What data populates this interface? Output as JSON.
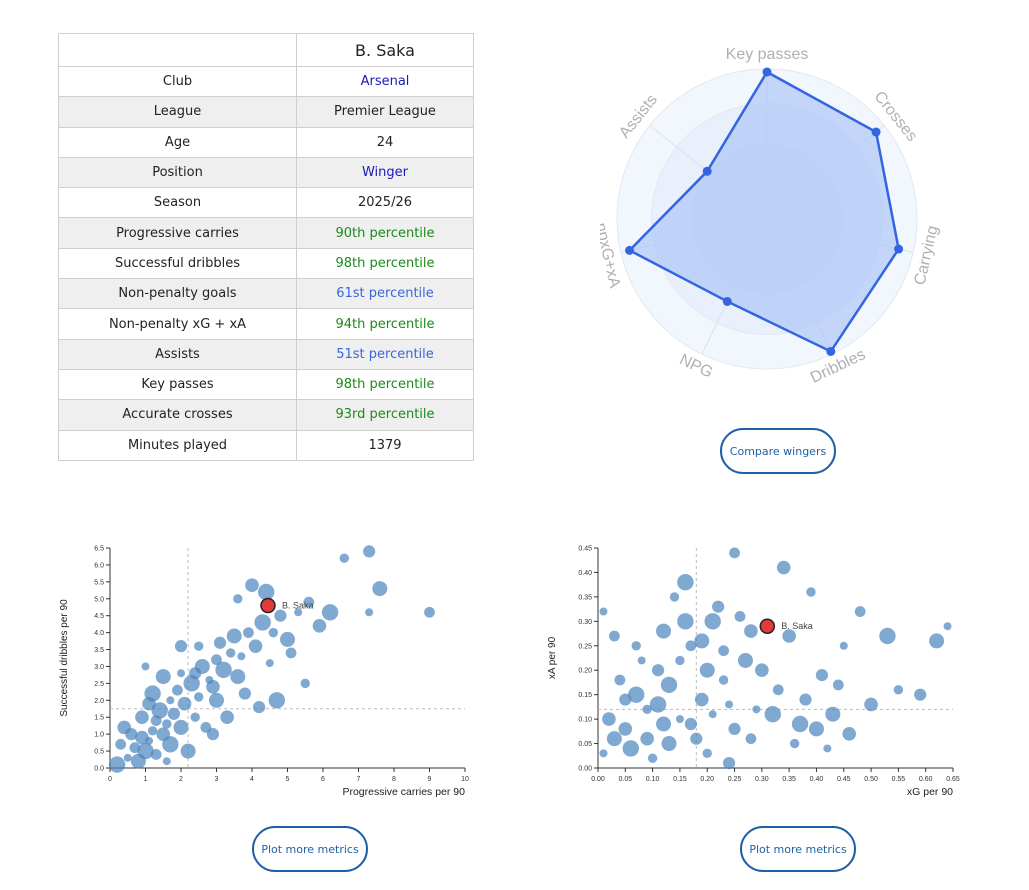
{
  "player_table": {
    "header": "B. Saka",
    "rows": [
      {
        "label": "Club",
        "value": "Arsenal",
        "style": "navy"
      },
      {
        "label": "League",
        "value": "Premier League",
        "style": "plain"
      },
      {
        "label": "Age",
        "value": "24",
        "style": "plain"
      },
      {
        "label": "Position",
        "value": "Winger",
        "style": "navy"
      },
      {
        "label": "Season",
        "value": "2025/26",
        "style": "plain"
      },
      {
        "label": "Progressive carries",
        "value": "90th percentile",
        "style": "green"
      },
      {
        "label": "Successful dribbles",
        "value": "98th percentile",
        "style": "green"
      },
      {
        "label": "Non-penalty goals",
        "value": "61st percentile",
        "style": "blue"
      },
      {
        "label": "Non-penalty xG + xA",
        "value": "94th percentile",
        "style": "green"
      },
      {
        "label": "Assists",
        "value": "51st percentile",
        "style": "blue"
      },
      {
        "label": "Key passes",
        "value": "98th percentile",
        "style": "green"
      },
      {
        "label": "Accurate crosses",
        "value": "93rd percentile",
        "style": "green"
      },
      {
        "label": "Minutes played",
        "value": "1379",
        "style": "plain"
      }
    ]
  },
  "colors": {
    "green": "#1a8a1a",
    "blue": "#3b66d6",
    "navy": "#1a1ab8",
    "button": "#1f5fa8",
    "dot": "#4a84bd",
    "highlight": "#e03b3b",
    "radar_line": "#3365e0",
    "radar_fill": "#a9c3f7"
  },
  "buttons": {
    "compare": "Compare wingers",
    "plot_more": "Plot more metrics"
  },
  "chart_data": [
    {
      "type": "radar",
      "title": "",
      "axes": [
        "Key passes",
        "Crosses",
        "Carrying",
        "Dribbles",
        "NPG",
        "npxG+xA",
        "Assists"
      ],
      "values": [
        98,
        93,
        90,
        98,
        61,
        94,
        51
      ],
      "range": [
        0,
        100
      ]
    },
    {
      "type": "scatter",
      "xlabel": "Progressive carries per 90",
      "ylabel": "Successful dribbles per 90",
      "xlim": [
        0,
        10
      ],
      "ylim": [
        0,
        6.5
      ],
      "xticks": [
        0,
        1,
        2,
        3,
        4,
        5,
        6,
        7,
        8,
        9,
        10
      ],
      "yticks": [
        0,
        0.5,
        1,
        1.5,
        2,
        2.5,
        3,
        3.5,
        4,
        4.5,
        5,
        5.5,
        6,
        6.5
      ],
      "ytick_labels": [
        "0.0",
        "0.5",
        "1.0",
        "1.5",
        "2.0",
        "2.5",
        "3.0",
        "3.5",
        "4.0",
        "4.5",
        "5.0",
        "5.5",
        "6.0",
        "6.5"
      ],
      "ref_lines": {
        "x": 2.2,
        "y": 1.75
      },
      "highlight": {
        "label": "B. Saka",
        "x": 4.45,
        "y": 4.8
      },
      "points": [
        [
          0.5,
          0.3
        ],
        [
          0.7,
          0.6
        ],
        [
          0.9,
          0.9
        ],
        [
          1.0,
          0.5
        ],
        [
          1.2,
          1.1
        ],
        [
          0.6,
          1.0
        ],
        [
          0.8,
          0.2
        ],
        [
          1.1,
          0.8
        ],
        [
          1.3,
          1.4
        ],
        [
          1.5,
          1.0
        ],
        [
          1.4,
          1.7
        ],
        [
          1.6,
          1.3
        ],
        [
          1.8,
          1.6
        ],
        [
          2.0,
          1.2
        ],
        [
          1.7,
          2.0
        ],
        [
          1.9,
          2.3
        ],
        [
          2.1,
          1.9
        ],
        [
          2.3,
          2.5
        ],
        [
          2.5,
          2.1
        ],
        [
          2.4,
          2.8
        ],
        [
          2.6,
          3.0
        ],
        [
          2.8,
          2.6
        ],
        [
          3.0,
          3.2
        ],
        [
          2.9,
          2.4
        ],
        [
          3.2,
          2.9
        ],
        [
          3.4,
          3.4
        ],
        [
          3.1,
          3.7
        ],
        [
          3.5,
          3.9
        ],
        [
          3.7,
          3.3
        ],
        [
          3.9,
          4.0
        ],
        [
          4.1,
          3.6
        ],
        [
          4.3,
          4.3
        ],
        [
          4.6,
          4.0
        ],
        [
          4.8,
          4.5
        ],
        [
          5.0,
          3.8
        ],
        [
          5.3,
          4.6
        ],
        [
          5.6,
          4.9
        ],
        [
          5.9,
          4.2
        ],
        [
          6.2,
          4.6
        ],
        [
          6.6,
          6.2
        ],
        [
          7.3,
          6.4
        ],
        [
          7.6,
          5.3
        ],
        [
          7.3,
          4.6
        ],
        [
          9.0,
          4.6
        ],
        [
          4.0,
          5.4
        ],
        [
          4.4,
          5.2
        ],
        [
          3.6,
          5.0
        ],
        [
          2.0,
          3.6
        ],
        [
          1.5,
          2.7
        ],
        [
          1.0,
          3.0
        ],
        [
          2.7,
          1.2
        ],
        [
          3.3,
          1.5
        ],
        [
          4.7,
          2.0
        ],
        [
          5.5,
          2.5
        ],
        [
          4.2,
          1.8
        ],
        [
          2.2,
          0.5
        ],
        [
          1.6,
          0.2
        ],
        [
          0.3,
          0.7
        ],
        [
          0.4,
          1.2
        ],
        [
          1.2,
          2.2
        ],
        [
          2.5,
          3.6
        ],
        [
          3.8,
          2.2
        ],
        [
          3.0,
          2.0
        ],
        [
          2.0,
          2.8
        ],
        [
          1.3,
          0.4
        ],
        [
          0.9,
          1.5
        ],
        [
          1.7,
          0.7
        ],
        [
          2.4,
          1.5
        ],
        [
          2.9,
          1.0
        ],
        [
          3.6,
          2.7
        ],
        [
          4.5,
          3.1
        ],
        [
          5.1,
          3.4
        ],
        [
          1.1,
          1.9
        ],
        [
          0.2,
          0.1
        ]
      ]
    },
    {
      "type": "scatter",
      "xlabel": "xG per 90",
      "ylabel": "xA per 90",
      "xlim": [
        0,
        0.65
      ],
      "ylim": [
        0,
        0.45
      ],
      "xticks": [
        0,
        0.05,
        0.1,
        0.15,
        0.2,
        0.25,
        0.3,
        0.35,
        0.4,
        0.45,
        0.5,
        0.55,
        0.6,
        0.65
      ],
      "xtick_labels": [
        "0.00",
        "0.05",
        "0.10",
        "0.15",
        "0.20",
        "0.25",
        "0.30",
        "0.35",
        "0.40",
        "0.45",
        "0.50",
        "0.55",
        "0.60",
        "0.65"
      ],
      "yticks": [
        0,
        0.05,
        0.1,
        0.15,
        0.2,
        0.25,
        0.3,
        0.35,
        0.4,
        0.45
      ],
      "ytick_labels": [
        "0.00",
        "0.05",
        "0.10",
        "0.15",
        "0.20",
        "0.25",
        "0.30",
        "0.35",
        "0.40",
        "0.45"
      ],
      "ref_lines": {
        "x": 0.18,
        "y": 0.12
      },
      "highlight": {
        "label": "B. Saka",
        "x": 0.31,
        "y": 0.29
      },
      "points": [
        [
          0.01,
          0.32
        ],
        [
          0.03,
          0.27
        ],
        [
          0.05,
          0.08
        ],
        [
          0.07,
          0.15
        ],
        [
          0.09,
          0.12
        ],
        [
          0.11,
          0.2
        ],
        [
          0.13,
          0.05
        ],
        [
          0.15,
          0.1
        ],
        [
          0.17,
          0.25
        ],
        [
          0.19,
          0.14
        ],
        [
          0.21,
          0.3
        ],
        [
          0.23,
          0.18
        ],
        [
          0.25,
          0.08
        ],
        [
          0.27,
          0.22
        ],
        [
          0.29,
          0.12
        ],
        [
          0.33,
          0.16
        ],
        [
          0.35,
          0.27
        ],
        [
          0.37,
          0.09
        ],
        [
          0.39,
          0.36
        ],
        [
          0.41,
          0.19
        ],
        [
          0.43,
          0.11
        ],
        [
          0.45,
          0.25
        ],
        [
          0.48,
          0.32
        ],
        [
          0.5,
          0.13
        ],
        [
          0.53,
          0.27
        ],
        [
          0.55,
          0.16
        ],
        [
          0.59,
          0.15
        ],
        [
          0.62,
          0.26
        ],
        [
          0.64,
          0.29
        ],
        [
          0.25,
          0.44
        ],
        [
          0.34,
          0.41
        ],
        [
          0.16,
          0.38
        ],
        [
          0.14,
          0.35
        ],
        [
          0.22,
          0.33
        ],
        [
          0.12,
          0.28
        ],
        [
          0.08,
          0.22
        ],
        [
          0.04,
          0.18
        ],
        [
          0.02,
          0.1
        ],
        [
          0.06,
          0.04
        ],
        [
          0.1,
          0.02
        ],
        [
          0.18,
          0.06
        ],
        [
          0.2,
          0.2
        ],
        [
          0.24,
          0.13
        ],
        [
          0.28,
          0.06
        ],
        [
          0.3,
          0.2
        ],
        [
          0.32,
          0.11
        ],
        [
          0.36,
          0.05
        ],
        [
          0.38,
          0.14
        ],
        [
          0.4,
          0.08
        ],
        [
          0.42,
          0.04
        ],
        [
          0.44,
          0.17
        ],
        [
          0.46,
          0.07
        ],
        [
          0.13,
          0.17
        ],
        [
          0.15,
          0.22
        ],
        [
          0.17,
          0.09
        ],
        [
          0.19,
          0.26
        ],
        [
          0.21,
          0.11
        ],
        [
          0.23,
          0.24
        ],
        [
          0.09,
          0.06
        ],
        [
          0.11,
          0.13
        ],
        [
          0.07,
          0.25
        ],
        [
          0.05,
          0.14
        ],
        [
          0.03,
          0.06
        ],
        [
          0.01,
          0.03
        ],
        [
          0.26,
          0.31
        ],
        [
          0.28,
          0.28
        ],
        [
          0.16,
          0.3
        ],
        [
          0.2,
          0.03
        ],
        [
          0.24,
          0.01
        ],
        [
          0.12,
          0.09
        ]
      ]
    }
  ]
}
